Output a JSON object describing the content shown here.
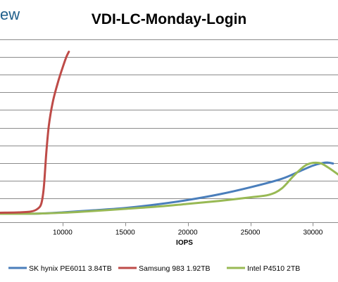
{
  "logo_text": "ew",
  "chart_data": {
    "type": "line",
    "title": "VDI-LC-Monday-Login",
    "xlabel": "IOPS",
    "ylabel": "",
    "xlim": [
      5000,
      32000
    ],
    "ylim": [
      0,
      10
    ],
    "x_ticks": [
      10000,
      15000,
      20000,
      25000,
      30000
    ],
    "x_tick_labels": [
      "10000",
      "15000",
      "20000",
      "25000",
      "30000"
    ],
    "y_gridlines": [
      1,
      2,
      3,
      4,
      5,
      6,
      7,
      8,
      9,
      10
    ],
    "grid": true,
    "legend_position": "bottom",
    "series": [
      {
        "name": "SK hynix PE6011 3.84TB",
        "color": "#4a7ebb",
        "points": [
          [
            5000,
            0.12
          ],
          [
            8000,
            0.13
          ],
          [
            10000,
            0.2
          ],
          [
            12500,
            0.32
          ],
          [
            15000,
            0.45
          ],
          [
            17500,
            0.65
          ],
          [
            20000,
            0.9
          ],
          [
            22500,
            1.22
          ],
          [
            25000,
            1.62
          ],
          [
            27500,
            2.1
          ],
          [
            29000,
            2.55
          ],
          [
            30000,
            2.85
          ],
          [
            30800,
            3.0
          ],
          [
            31200,
            3.02
          ],
          [
            31600,
            2.97
          ]
        ]
      },
      {
        "name": "Samsung 983 1.92TB",
        "color": "#be4b48",
        "points": [
          [
            5000,
            0.18
          ],
          [
            6500,
            0.2
          ],
          [
            7500,
            0.25
          ],
          [
            8000,
            0.4
          ],
          [
            8300,
            0.7
          ],
          [
            8500,
            1.6
          ],
          [
            8700,
            3.6
          ],
          [
            8900,
            5.1
          ],
          [
            9200,
            6.4
          ],
          [
            9600,
            7.5
          ],
          [
            10000,
            8.4
          ],
          [
            10300,
            9.0
          ],
          [
            10500,
            9.3
          ]
        ]
      },
      {
        "name": "Intel P4510 2TB",
        "color": "#98b954",
        "points": [
          [
            5000,
            0.12
          ],
          [
            8000,
            0.13
          ],
          [
            10000,
            0.18
          ],
          [
            12500,
            0.28
          ],
          [
            15000,
            0.4
          ],
          [
            17500,
            0.52
          ],
          [
            20000,
            0.68
          ],
          [
            22500,
            0.85
          ],
          [
            25000,
            1.05
          ],
          [
            26500,
            1.2
          ],
          [
            27500,
            1.55
          ],
          [
            28500,
            2.3
          ],
          [
            29500,
            2.9
          ],
          [
            30500,
            3.0
          ],
          [
            31200,
            2.75
          ],
          [
            32000,
            2.35
          ]
        ]
      }
    ]
  }
}
